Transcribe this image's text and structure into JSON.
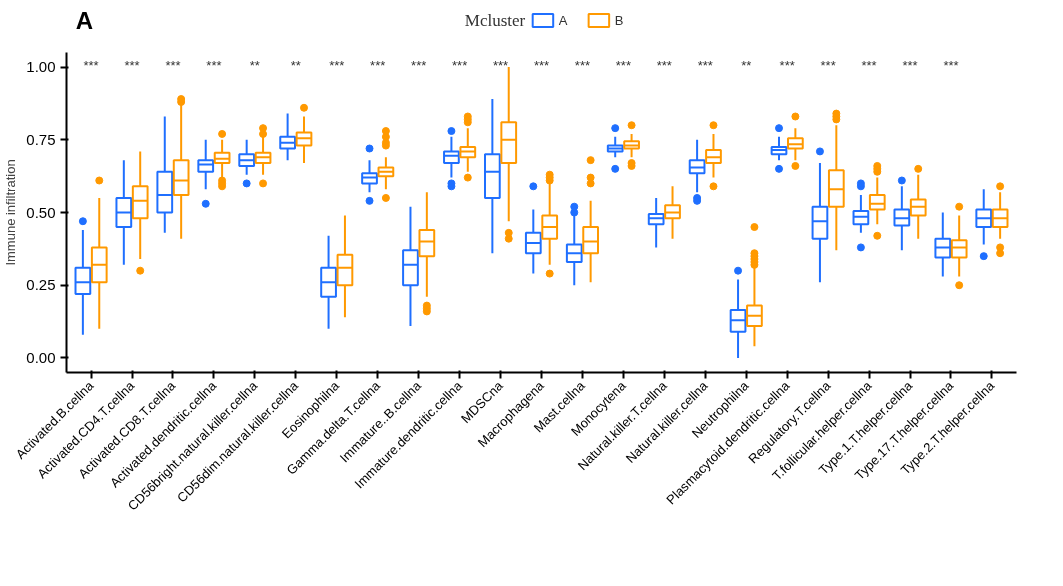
{
  "chart_data": {
    "type": "box",
    "title": "A",
    "ylabel": "Immune infiltration",
    "legend_title": "Mcluster",
    "legend": "top",
    "grid": false,
    "categories": [
      "Activated.B.cellna",
      "Activated.CD4.T.cellna",
      "Activated.CD8.T.cellna",
      "Activated.dendritic.cellna",
      "CD56bright.natural.killer.cellna",
      "CD56dim.natural.killer.cellna",
      "Eosinophilna",
      "Gamma.delta.T.cellna",
      "Immature..B.cellna",
      "Immature.dendritic.cellna",
      "MDSCna",
      "Macrophagena",
      "Mast.cellna",
      "Monocytena",
      "Natural.killer.T.cellna",
      "Natural.killer.cellna",
      "Neutrophilna",
      "Plasmacytoid.dendritic.cellna",
      "Regulatory.T.cellna",
      "T.follicular.helper.cellna",
      "Type.1.T.helper.cellna",
      "Type.17.T.helper.cellna",
      "Type.2.T.helper.cellna"
    ],
    "ylim": [
      -0.05,
      1.05
    ],
    "yticks": [
      {
        "value": 0,
        "label": "0.00"
      },
      {
        "value": 0.25,
        "label": "0.25"
      },
      {
        "value": 0.5,
        "label": "0.50"
      },
      {
        "value": 0.75,
        "label": "0.75"
      },
      {
        "value": 1,
        "label": "1.00"
      }
    ],
    "series": [
      {
        "name": "A",
        "color": "#1f6fff",
        "boxes": [
          {
            "low": 0.08,
            "q1": 0.22,
            "median": 0.26,
            "q3": 0.31,
            "high": 0.44,
            "outliers": [
              0.47
            ]
          },
          {
            "low": 0.32,
            "q1": 0.45,
            "median": 0.5,
            "q3": 0.55,
            "high": 0.68
          },
          {
            "low": 0.43,
            "q1": 0.5,
            "median": 0.56,
            "q3": 0.64,
            "high": 0.83
          },
          {
            "low": 0.58,
            "q1": 0.64,
            "median": 0.665,
            "q3": 0.68,
            "high": 0.75,
            "outliers": [
              0.53
            ]
          },
          {
            "low": 0.63,
            "q1": 0.66,
            "median": 0.68,
            "q3": 0.7,
            "high": 0.75,
            "outliers": [
              0.6
            ]
          },
          {
            "low": 0.68,
            "q1": 0.72,
            "median": 0.74,
            "q3": 0.76,
            "high": 0.84
          },
          {
            "low": 0.1,
            "q1": 0.21,
            "median": 0.26,
            "q3": 0.31,
            "high": 0.42
          },
          {
            "low": 0.57,
            "q1": 0.6,
            "median": 0.62,
            "q3": 0.635,
            "high": 0.68,
            "outliers": [
              0.54,
              0.72
            ]
          },
          {
            "low": 0.11,
            "q1": 0.25,
            "median": 0.32,
            "q3": 0.37,
            "high": 0.52
          },
          {
            "low": 0.62,
            "q1": 0.67,
            "median": 0.695,
            "q3": 0.71,
            "high": 0.76,
            "outliers": [
              0.59,
              0.6,
              0.78
            ]
          },
          {
            "low": 0.36,
            "q1": 0.55,
            "median": 0.64,
            "q3": 0.7,
            "high": 0.89
          },
          {
            "low": 0.29,
            "q1": 0.36,
            "median": 0.395,
            "q3": 0.43,
            "high": 0.51,
            "outliers": [
              0.59
            ]
          },
          {
            "low": 0.25,
            "q1": 0.33,
            "median": 0.36,
            "q3": 0.39,
            "high": 0.49,
            "outliers": [
              0.5,
              0.52
            ]
          },
          {
            "low": 0.69,
            "q1": 0.71,
            "median": 0.72,
            "q3": 0.73,
            "high": 0.76,
            "outliers": [
              0.65,
              0.79
            ]
          },
          {
            "low": 0.38,
            "q1": 0.46,
            "median": 0.48,
            "q3": 0.495,
            "high": 0.55
          },
          {
            "low": 0.57,
            "q1": 0.635,
            "median": 0.655,
            "q3": 0.68,
            "high": 0.75,
            "outliers": [
              0.54,
              0.55
            ]
          },
          {
            "low": 0.0,
            "q1": 0.09,
            "median": 0.13,
            "q3": 0.165,
            "high": 0.27,
            "outliers": [
              0.3
            ]
          },
          {
            "low": 0.68,
            "q1": 0.7,
            "median": 0.715,
            "q3": 0.725,
            "high": 0.76,
            "outliers": [
              0.65,
              0.79
            ]
          },
          {
            "low": 0.26,
            "q1": 0.41,
            "median": 0.47,
            "q3": 0.52,
            "high": 0.67,
            "outliers": [
              0.71
            ]
          },
          {
            "low": 0.43,
            "q1": 0.46,
            "median": 0.485,
            "q3": 0.505,
            "high": 0.56,
            "outliers": [
              0.38,
              0.59,
              0.6
            ]
          },
          {
            "low": 0.37,
            "q1": 0.455,
            "median": 0.48,
            "q3": 0.51,
            "high": 0.59,
            "outliers": [
              0.61
            ]
          },
          {
            "low": 0.28,
            "q1": 0.345,
            "median": 0.38,
            "q3": 0.41,
            "high": 0.5
          },
          {
            "low": 0.39,
            "q1": 0.45,
            "median": 0.48,
            "q3": 0.51,
            "high": 0.58,
            "outliers": [
              0.35
            ]
          }
        ]
      },
      {
        "name": "B",
        "color": "#ff9900",
        "boxes": [
          {
            "low": 0.1,
            "q1": 0.26,
            "median": 0.32,
            "q3": 0.38,
            "high": 0.55,
            "outliers": [
              0.61
            ]
          },
          {
            "low": 0.34,
            "q1": 0.48,
            "median": 0.54,
            "q3": 0.59,
            "high": 0.71,
            "outliers": [
              0.3
            ]
          },
          {
            "low": 0.41,
            "q1": 0.56,
            "median": 0.61,
            "q3": 0.68,
            "high": 0.87,
            "outliers": [
              0.88,
              0.89
            ]
          },
          {
            "low": 0.61,
            "q1": 0.67,
            "median": 0.685,
            "q3": 0.705,
            "high": 0.75,
            "outliers": [
              0.59,
              0.6,
              0.61,
              0.77
            ]
          },
          {
            "low": 0.63,
            "q1": 0.67,
            "median": 0.69,
            "q3": 0.705,
            "high": 0.76,
            "outliers": [
              0.6,
              0.77,
              0.79
            ]
          },
          {
            "low": 0.67,
            "q1": 0.73,
            "median": 0.755,
            "q3": 0.775,
            "high": 0.83,
            "outliers": [
              0.86
            ]
          },
          {
            "low": 0.14,
            "q1": 0.25,
            "median": 0.31,
            "q3": 0.355,
            "high": 0.49
          },
          {
            "low": 0.58,
            "q1": 0.625,
            "median": 0.64,
            "q3": 0.655,
            "high": 0.69,
            "outliers": [
              0.55,
              0.73,
              0.74,
              0.76,
              0.78
            ]
          },
          {
            "low": 0.21,
            "q1": 0.35,
            "median": 0.4,
            "q3": 0.44,
            "high": 0.57,
            "outliers": [
              0.16,
              0.17,
              0.18
            ]
          },
          {
            "low": 0.64,
            "q1": 0.69,
            "median": 0.71,
            "q3": 0.725,
            "high": 0.79,
            "outliers": [
              0.62,
              0.81,
              0.82,
              0.83
            ]
          },
          {
            "low": 0.47,
            "q1": 0.67,
            "median": 0.75,
            "q3": 0.81,
            "high": 1.0,
            "outliers": [
              0.41,
              0.43
            ]
          },
          {
            "low": 0.32,
            "q1": 0.41,
            "median": 0.45,
            "q3": 0.49,
            "high": 0.6,
            "outliers": [
              0.29,
              0.61,
              0.62,
              0.63
            ]
          },
          {
            "low": 0.26,
            "q1": 0.36,
            "median": 0.4,
            "q3": 0.45,
            "high": 0.54,
            "outliers": [
              0.6,
              0.62,
              0.68
            ]
          },
          {
            "low": 0.69,
            "q1": 0.72,
            "median": 0.73,
            "q3": 0.745,
            "high": 0.77,
            "outliers": [
              0.66,
              0.67,
              0.8
            ]
          },
          {
            "low": 0.41,
            "q1": 0.48,
            "median": 0.5,
            "q3": 0.525,
            "high": 0.59
          },
          {
            "low": 0.62,
            "q1": 0.67,
            "median": 0.69,
            "q3": 0.715,
            "high": 0.77,
            "outliers": [
              0.59,
              0.8
            ]
          },
          {
            "low": 0.04,
            "q1": 0.11,
            "median": 0.145,
            "q3": 0.18,
            "high": 0.31,
            "outliers": [
              0.32,
              0.33,
              0.34,
              0.35,
              0.36,
              0.45
            ]
          },
          {
            "low": 0.68,
            "q1": 0.72,
            "median": 0.735,
            "q3": 0.755,
            "high": 0.79,
            "outliers": [
              0.66,
              0.83
            ]
          },
          {
            "low": 0.37,
            "q1": 0.52,
            "median": 0.58,
            "q3": 0.645,
            "high": 0.8,
            "outliers": [
              0.82,
              0.83,
              0.84
            ]
          },
          {
            "low": 0.46,
            "q1": 0.51,
            "median": 0.53,
            "q3": 0.56,
            "high": 0.62,
            "outliers": [
              0.42,
              0.64,
              0.65,
              0.66
            ]
          },
          {
            "low": 0.41,
            "q1": 0.49,
            "median": 0.52,
            "q3": 0.545,
            "high": 0.63,
            "outliers": [
              0.65
            ]
          },
          {
            "low": 0.28,
            "q1": 0.345,
            "median": 0.38,
            "q3": 0.405,
            "high": 0.49,
            "outliers": [
              0.25,
              0.52
            ]
          },
          {
            "low": 0.41,
            "q1": 0.45,
            "median": 0.48,
            "q3": 0.51,
            "high": 0.57,
            "outliers": [
              0.36,
              0.38,
              0.59
            ]
          }
        ]
      }
    ],
    "annotations": [
      "***",
      "***",
      "***",
      "***",
      "**",
      "**",
      "***",
      "***",
      "***",
      "***",
      "***",
      "***",
      "***",
      "***",
      "***",
      "***",
      "**",
      "***",
      "***",
      "***",
      "***",
      "***"
    ]
  }
}
